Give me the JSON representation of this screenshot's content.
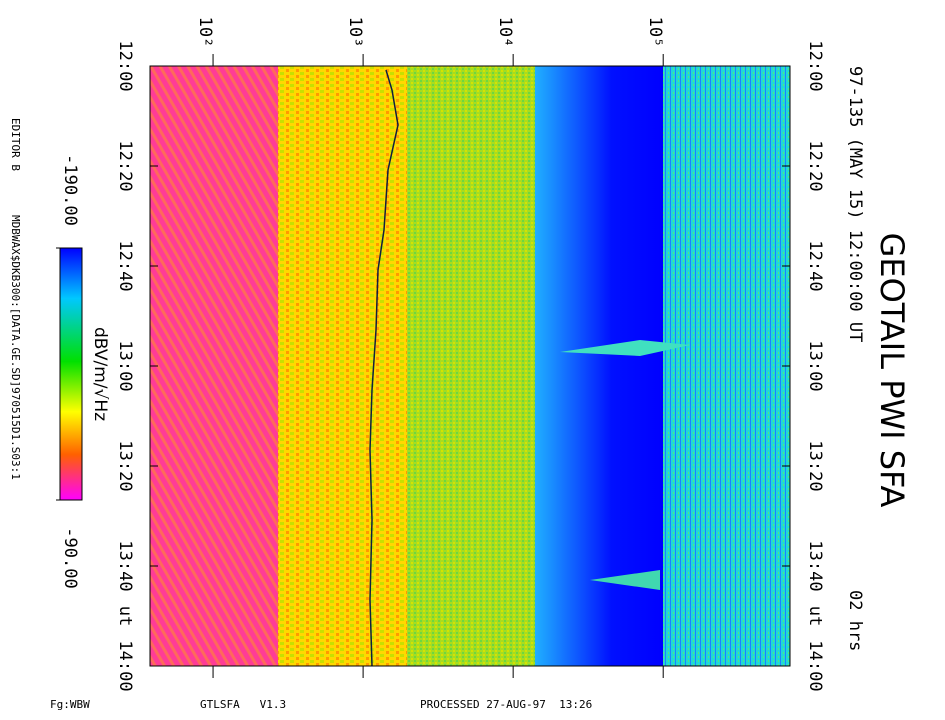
{
  "chart_data": {
    "type": "spectrogram",
    "title": "GEOTAIL PWI SFA",
    "subtitle": "97-135 (MAY 15) 12:00:00 UT",
    "duration": "02 hrs",
    "time_unit_label": "ut",
    "ylim": [
      0,
      120
    ],
    "yticks": [
      {
        "value": 0,
        "label": "12:00"
      },
      {
        "value": 20,
        "label": "12:20"
      },
      {
        "value": 40,
        "label": "12:40"
      },
      {
        "value": 60,
        "label": "13:00"
      },
      {
        "value": 80,
        "label": "13:20"
      },
      {
        "value": 100,
        "label": "13:40"
      },
      {
        "value": 120,
        "label": "14:00"
      }
    ],
    "log_x": true,
    "xlim": [
      38,
      700000
    ],
    "xticks": [
      {
        "value": 100,
        "label": "10²"
      },
      {
        "value": 1000,
        "label": "10³"
      },
      {
        "value": 10000,
        "label": "10⁴"
      },
      {
        "value": 100000,
        "label": "10⁵"
      }
    ],
    "colorbar": {
      "label": "dBV/m/√Hz",
      "lim": [
        -190,
        -90
      ],
      "ticks": [
        {
          "value": -190,
          "label": "-190.00"
        },
        {
          "value": -90,
          "label": "-90.00"
        }
      ]
    },
    "editor": "EDITOR B",
    "file": "MDBWAX$DKB300:[DATA.GE.SD]970515D1.S03:1",
    "footer": [
      "Fg:WBW",
      "GTLSFA   V1.3",
      "PROCESSED 27-AUG-97  13:26"
    ]
  }
}
